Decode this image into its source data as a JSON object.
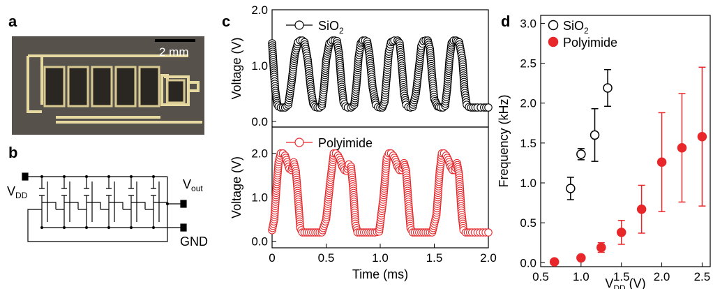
{
  "panel_labels": {
    "a": "a",
    "b": "b",
    "c": "c",
    "d": "d"
  },
  "photo": {
    "scale_bar_label": "2 mm"
  },
  "circuit": {
    "vdd_label": "V",
    "vdd_sub": "DD",
    "vout_label": "V",
    "vout_sub": "out",
    "gnd_label": "GND"
  },
  "colors": {
    "sio2": "#000000",
    "polyimide": "#e8272b",
    "photo_bg": "#56524b",
    "photo_metal": "#e7d9a2"
  },
  "chart_data": [
    {
      "type": "line",
      "panel": "c-top",
      "ylabel": "Voltage (V)",
      "xlim": [
        0,
        2.0
      ],
      "ylim": [
        -0.1,
        2.0
      ],
      "yticks": [
        "0.0",
        "1.0",
        "2.0"
      ],
      "series": [
        {
          "name": "SiO",
          "name_sub": "2",
          "marker": "open-circle",
          "color": "#000000",
          "x": [
            0.0,
            0.01,
            0.02,
            0.03,
            0.04,
            0.05,
            0.06,
            0.08,
            0.1,
            0.12,
            0.15,
            0.18,
            0.21,
            0.24,
            0.26,
            0.28,
            0.3,
            0.33,
            0.36,
            0.38,
            0.4,
            0.42,
            0.44,
            0.46,
            0.48,
            0.5,
            0.53,
            0.56,
            0.58,
            0.6,
            0.62,
            0.64,
            0.66,
            0.68,
            0.7,
            0.73,
            0.76,
            0.78,
            0.8,
            0.82,
            0.84,
            0.86,
            0.88,
            0.9,
            0.93,
            0.96,
            0.98,
            1.0,
            1.02,
            1.04,
            1.06,
            1.08,
            1.1,
            1.13,
            1.16,
            1.18,
            1.2,
            1.22,
            1.24,
            1.26,
            1.28,
            1.3,
            1.33,
            1.36,
            1.38,
            1.4,
            1.42,
            1.44,
            1.46,
            1.48,
            1.5,
            1.53,
            1.56,
            1.58,
            1.6,
            1.62,
            1.64,
            1.66,
            1.68,
            1.7,
            1.73,
            1.76,
            1.78,
            1.8,
            1.82,
            1.84,
            1.86,
            1.88,
            1.9,
            1.93,
            1.96,
            1.98,
            2.0
          ],
          "y": [
            1.4,
            1.1,
            0.8,
            0.55,
            0.4,
            0.3,
            0.27,
            0.25,
            0.25,
            0.25,
            0.3,
            0.7,
            1.2,
            1.42,
            1.45,
            1.45,
            1.42,
            1.1,
            0.55,
            0.32,
            0.26,
            0.25,
            0.25,
            0.28,
            0.6,
            1.1,
            1.4,
            1.45,
            1.45,
            1.44,
            1.2,
            0.7,
            0.35,
            0.27,
            0.25,
            0.25,
            0.3,
            0.65,
            1.15,
            1.4,
            1.45,
            1.45,
            1.43,
            1.2,
            0.6,
            0.3,
            0.26,
            0.25,
            0.25,
            0.35,
            0.8,
            1.25,
            1.42,
            1.45,
            1.45,
            1.4,
            1.0,
            0.5,
            0.3,
            0.26,
            0.25,
            0.26,
            0.5,
            1.0,
            1.35,
            1.44,
            1.45,
            1.45,
            1.3,
            0.8,
            0.4,
            0.27,
            0.25,
            0.25,
            0.28,
            0.6,
            1.1,
            1.4,
            1.45,
            1.45,
            1.42,
            1.1,
            0.55,
            0.3,
            0.26,
            0.25,
            0.25,
            0.25,
            0.25,
            0.25,
            0.25,
            0.25,
            0.25
          ]
        }
      ]
    },
    {
      "type": "line",
      "panel": "c-bottom",
      "xlabel": "Time (ms)",
      "ylabel": "Voltage (V)",
      "xlim": [
        0,
        2.0
      ],
      "ylim": [
        -0.15,
        2.6
      ],
      "xticks": [
        "0",
        "0.5",
        "1.0",
        "1.5",
        "2.0"
      ],
      "yticks": [
        "0.0",
        "1.0",
        "2.0"
      ],
      "series": [
        {
          "name": "Polyimide",
          "marker": "open-circle",
          "color": "#e8272b",
          "x": [
            0.0,
            0.02,
            0.04,
            0.06,
            0.08,
            0.1,
            0.12,
            0.14,
            0.16,
            0.18,
            0.2,
            0.22,
            0.24,
            0.26,
            0.28,
            0.3,
            0.34,
            0.38,
            0.42,
            0.46,
            0.5,
            0.54,
            0.57,
            0.59,
            0.61,
            0.63,
            0.65,
            0.67,
            0.69,
            0.71,
            0.73,
            0.75,
            0.77,
            0.79,
            0.81,
            0.83,
            0.87,
            0.91,
            0.95,
            0.99,
            1.03,
            1.06,
            1.08,
            1.1,
            1.12,
            1.14,
            1.16,
            1.18,
            1.2,
            1.22,
            1.24,
            1.26,
            1.28,
            1.3,
            1.32,
            1.36,
            1.4,
            1.44,
            1.48,
            1.52,
            1.55,
            1.57,
            1.59,
            1.61,
            1.63,
            1.65,
            1.67,
            1.69,
            1.71,
            1.73,
            1.75,
            1.77,
            1.79,
            1.81,
            1.85,
            1.9,
            1.95,
            2.0
          ],
          "y": [
            0.25,
            0.5,
            1.2,
            1.8,
            2.0,
            2.0,
            1.95,
            1.8,
            1.65,
            1.62,
            1.8,
            1.6,
            1.0,
            0.3,
            0.2,
            0.2,
            0.2,
            0.2,
            0.2,
            0.2,
            0.5,
            1.4,
            2.0,
            2.0,
            1.95,
            1.85,
            1.7,
            1.62,
            1.6,
            1.75,
            1.7,
            1.2,
            0.4,
            0.2,
            0.2,
            0.2,
            0.2,
            0.2,
            0.2,
            0.22,
            1.0,
            1.9,
            2.0,
            2.0,
            1.95,
            1.85,
            1.7,
            1.62,
            1.62,
            1.78,
            1.6,
            0.9,
            0.3,
            0.2,
            0.2,
            0.2,
            0.2,
            0.2,
            0.2,
            0.6,
            1.6,
            2.0,
            2.0,
            1.95,
            1.85,
            1.7,
            1.62,
            1.62,
            1.78,
            1.5,
            0.7,
            0.25,
            0.2,
            0.2,
            0.2,
            0.2,
            0.2,
            0.2
          ]
        }
      ]
    },
    {
      "type": "scatter",
      "panel": "d",
      "xlabel": "V",
      "xlabel_sub": "DD",
      "xlabel_unit": " (V)",
      "ylabel": "Frequency (kHz)",
      "xlim": [
        0.5,
        2.6
      ],
      "ylim": [
        -0.05,
        3.1
      ],
      "xticks": [
        "0.5",
        "1.0",
        "1.5",
        "2.0",
        "2.5"
      ],
      "yticks": [
        "0.0",
        "0.5",
        "1.0",
        "1.5",
        "2.0",
        "2.5",
        "3.0"
      ],
      "series": [
        {
          "name": "SiO",
          "name_sub": "2",
          "marker": "open-circle",
          "color": "#000000",
          "x": [
            0.87,
            1.0,
            1.17,
            1.33
          ],
          "y": [
            0.93,
            1.36,
            1.6,
            2.19
          ],
          "err": [
            0.14,
            0.07,
            0.33,
            0.23
          ]
        },
        {
          "name": "Polyimide",
          "marker": "filled-circle",
          "color": "#e8272b",
          "x": [
            0.67,
            1.0,
            1.25,
            1.5,
            1.75,
            2.0,
            2.25,
            2.5
          ],
          "y": [
            0.01,
            0.06,
            0.19,
            0.38,
            0.67,
            1.26,
            1.44,
            1.58
          ],
          "err": [
            0.0,
            0.0,
            0.06,
            0.15,
            0.3,
            0.62,
            0.68,
            0.87
          ]
        }
      ]
    }
  ]
}
